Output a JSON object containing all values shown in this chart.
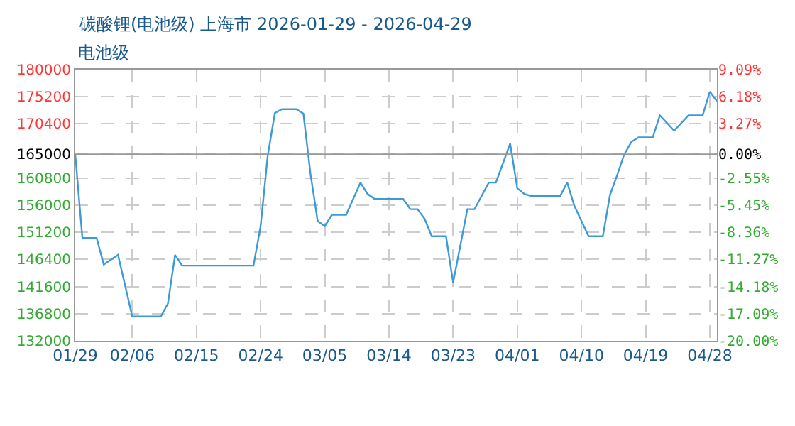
{
  "chart_data": {
    "type": "line",
    "title": "碳酸锂(电池级) 上海市 2026-01-29 - 2026-04-29",
    "ylabel": "电池级",
    "x": [
      "2026-01-29",
      "2026-01-30",
      "2026-02-01",
      "2026-02-02",
      "2026-02-04",
      "2026-02-06",
      "2026-02-10",
      "2026-02-11",
      "2026-02-12",
      "2026-02-13",
      "2026-02-23",
      "2026-02-24",
      "2026-02-25",
      "2026-02-26",
      "2026-02-27",
      "2026-03-01",
      "2026-03-02",
      "2026-03-03",
      "2026-03-04",
      "2026-03-05",
      "2026-03-06",
      "2026-03-08",
      "2026-03-10",
      "2026-03-11",
      "2026-03-12",
      "2026-03-16",
      "2026-03-17",
      "2026-03-18",
      "2026-03-19",
      "2026-03-20",
      "2026-03-22",
      "2026-03-23",
      "2026-03-25",
      "2026-03-26",
      "2026-03-28",
      "2026-03-29",
      "2026-03-31",
      "2026-04-01",
      "2026-04-02",
      "2026-04-03",
      "2026-04-07",
      "2026-04-08",
      "2026-04-09",
      "2026-04-11",
      "2026-04-13",
      "2026-04-14",
      "2026-04-15",
      "2026-04-16",
      "2026-04-17",
      "2026-04-18",
      "2026-04-20",
      "2026-04-21",
      "2026-04-23",
      "2026-04-25",
      "2026-04-27",
      "2026-04-28",
      "2026-04-29"
    ],
    "series": [
      {
        "color": "#3c9ad8",
        "values": [
          165000,
          150200,
          150200,
          145500,
          147200,
          136300,
          136300,
          138600,
          147200,
          145300,
          145300,
          152300,
          164800,
          172300,
          173000,
          173000,
          172200,
          161500,
          153200,
          152300,
          154300,
          154300,
          160000,
          158000,
          157100,
          157100,
          155300,
          155300,
          153600,
          150500,
          150500,
          142300,
          155300,
          155300,
          160000,
          160000,
          166900,
          159000,
          158000,
          157600,
          157600,
          160000,
          155900,
          150500,
          150500,
          157800,
          161300,
          165000,
          167200,
          168000,
          168000,
          171900,
          169200,
          171900,
          171900,
          176100,
          174400
        ]
      }
    ],
    "xlim": [
      "2026-01-29",
      "2026-04-29"
    ],
    "xticks": [
      {
        "value": "2026-01-29",
        "label": "01/29"
      },
      {
        "value": "2026-02-06",
        "label": "02/06"
      },
      {
        "value": "2026-02-15",
        "label": "02/15"
      },
      {
        "value": "2026-02-24",
        "label": "02/24"
      },
      {
        "value": "2026-03-05",
        "label": "03/05"
      },
      {
        "value": "2026-03-14",
        "label": "03/14"
      },
      {
        "value": "2026-03-23",
        "label": "03/23"
      },
      {
        "value": "2026-04-01",
        "label": "04/01"
      },
      {
        "value": "2026-04-10",
        "label": "04/10"
      },
      {
        "value": "2026-04-19",
        "label": "04/19"
      },
      {
        "value": "2026-04-28",
        "label": "04/28"
      }
    ],
    "ylim": [
      132000,
      180000
    ],
    "yticks": [
      132000,
      136800,
      141600,
      146400,
      151200,
      156000,
      160800,
      165000,
      170400,
      175200,
      180000
    ],
    "y2lim": [
      -20.0,
      9.09
    ],
    "y2ticks": [
      {
        "value": -20.0,
        "label": "-20.00%"
      },
      {
        "value": -17.09,
        "label": "-17.09%"
      },
      {
        "value": -14.18,
        "label": "-14.18%"
      },
      {
        "value": -11.27,
        "label": "-11.27%"
      },
      {
        "value": -8.36,
        "label": "-8.36%"
      },
      {
        "value": -5.45,
        "label": "-5.45%"
      },
      {
        "value": -2.55,
        "label": "-2.55%"
      },
      {
        "value": 0.0,
        "label": "0.00%"
      },
      {
        "value": 3.27,
        "label": "3.27%"
      },
      {
        "value": 6.18,
        "label": "6.18%"
      },
      {
        "value": 9.09,
        "label": "9.09%"
      }
    ],
    "ref_lines": [
      {
        "axis": "y",
        "value": 165000,
        "color": "#999999"
      }
    ],
    "grid": true,
    "legend": false,
    "marker": "none",
    "line_style": "solid"
  }
}
